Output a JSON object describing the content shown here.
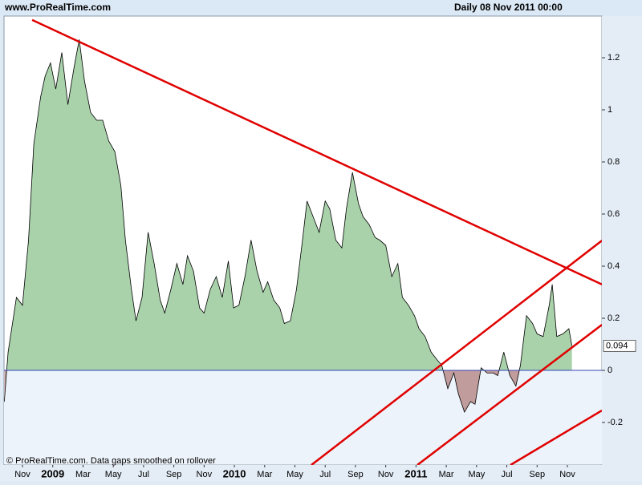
{
  "header": {
    "site": "www.ProRealTime.com",
    "info": "Daily  08 Nov 2011 00:00"
  },
  "footer": "© ProRealTime.com. Data gaps smoothed on rollover",
  "chart_data": {
    "type": "area",
    "x": [
      -1.2,
      -0.95,
      -0.4,
      0,
      0.4,
      0.75,
      1.2,
      1.5,
      1.85,
      2.2,
      2.6,
      3,
      3.4,
      3.75,
      4.1,
      4.5,
      4.9,
      5.3,
      5.7,
      6.1,
      6.5,
      6.8,
      7.2,
      7.5,
      7.9,
      8.3,
      8.7,
      9.1,
      9.4,
      9.8,
      10.2,
      10.6,
      10.9,
      11.3,
      11.7,
      12,
      12.4,
      12.8,
      13.2,
      13.6,
      13.95,
      14.3,
      14.7,
      15.1,
      15.5,
      15.9,
      16.2,
      16.6,
      17,
      17.3,
      17.7,
      18.1,
      18.5,
      18.8,
      19.2,
      19.6,
      20,
      20.3,
      20.7,
      21.1,
      21.4,
      21.8,
      22.2,
      22.5,
      22.9,
      23.3,
      23.6,
      24,
      24.4,
      24.8,
      25.1,
      25.5,
      25.9,
      26.2,
      26.6,
      27,
      27.4,
      27.7,
      28.1,
      28.5,
      28.8,
      29.2,
      29.6,
      29.9,
      30.3,
      30.7,
      31.1,
      31.4,
      31.8,
      32.2,
      32.6,
      32.9,
      33.3,
      33.7,
      34,
      34.4,
      34.8,
      35,
      35.3,
      35.7,
      36.1,
      36.3
    ],
    "series": [
      {
        "color": "#000000",
        "fill_positive": "#a9d2ab",
        "fill_negative": "#c09c9c",
        "values": [
          -0.12,
          0.07,
          0.28,
          0.25,
          0.5,
          0.87,
          1.05,
          1.13,
          1.18,
          1.08,
          1.22,
          1.02,
          1.16,
          1.27,
          1.11,
          0.99,
          0.96,
          0.96,
          0.88,
          0.84,
          0.71,
          0.5,
          0.31,
          0.19,
          0.28,
          0.53,
          0.41,
          0.27,
          0.22,
          0.31,
          0.41,
          0.33,
          0.44,
          0.38,
          0.24,
          0.22,
          0.31,
          0.36,
          0.28,
          0.42,
          0.24,
          0.25,
          0.36,
          0.5,
          0.38,
          0.3,
          0.34,
          0.27,
          0.24,
          0.18,
          0.19,
          0.31,
          0.5,
          0.65,
          0.59,
          0.53,
          0.65,
          0.62,
          0.5,
          0.47,
          0.62,
          0.76,
          0.64,
          0.59,
          0.56,
          0.51,
          0.5,
          0.48,
          0.36,
          0.41,
          0.28,
          0.25,
          0.21,
          0.16,
          0.13,
          0.07,
          0.04,
          0.02,
          -0.07,
          -0.01,
          -0.09,
          -0.16,
          -0.12,
          -0.13,
          0.01,
          -0.01,
          -0.01,
          -0.02,
          0.07,
          -0.02,
          -0.06,
          0.02,
          0.21,
          0.18,
          0.14,
          0.13,
          0.25,
          0.33,
          0.13,
          0.14,
          0.16,
          0.094
        ],
        "last_value_label": "0.094"
      }
    ],
    "zero_line_color": "#3344bb",
    "trendlines": [
      {
        "color": "#e00000",
        "x": [
          0.64,
          38.28
        ],
        "y": [
          1.345,
          0.33
        ]
      },
      {
        "color": "#e00000",
        "x": [
          19.09,
          38.28
        ],
        "y": [
          -0.363,
          0.498
        ]
      },
      {
        "color": "#e00000",
        "x": [
          26.09,
          38.28
        ],
        "y": [
          -0.363,
          0.175
        ]
      },
      {
        "color": "#e00000",
        "x": [
          32.24,
          38.28
        ],
        "y": [
          -0.363,
          -0.154
        ]
      }
    ],
    "xlim": [
      -1.22,
      38.28
    ],
    "ylim": [
      -0.363,
      1.36
    ],
    "xticks": [
      {
        "value": 0,
        "label": "Nov"
      },
      {
        "value": 2,
        "label": "2009"
      },
      {
        "value": 4,
        "label": "Mar"
      },
      {
        "value": 6,
        "label": "May"
      },
      {
        "value": 8,
        "label": "Jul"
      },
      {
        "value": 10,
        "label": "Sep"
      },
      {
        "value": 12,
        "label": "Nov"
      },
      {
        "value": 14,
        "label": "2010"
      },
      {
        "value": 16,
        "label": "Mar"
      },
      {
        "value": 18,
        "label": "May"
      },
      {
        "value": 20,
        "label": "Jul"
      },
      {
        "value": 22,
        "label": "Sep"
      },
      {
        "value": 24,
        "label": "Nov"
      },
      {
        "value": 26,
        "label": "2011"
      },
      {
        "value": 28,
        "label": "Mar"
      },
      {
        "value": 30,
        "label": "May"
      },
      {
        "value": 32,
        "label": "Jul"
      },
      {
        "value": 34,
        "label": "Sep"
      },
      {
        "value": 36,
        "label": "Nov"
      }
    ],
    "yticks": [
      {
        "value": -0.2,
        "label": "-0.2"
      },
      0,
      0.2,
      0.4,
      0.6,
      0.8,
      1,
      1.2
    ]
  }
}
